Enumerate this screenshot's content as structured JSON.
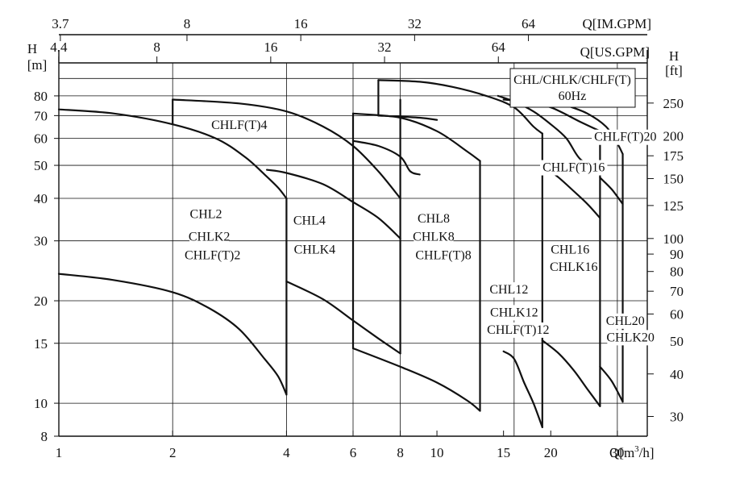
{
  "chart_data": {
    "type": "line",
    "title": "",
    "legend_box": {
      "line1": "CHL/CHLK/CHLF(T)",
      "line2": "60Hz"
    },
    "x_axis": {
      "label": "Q[m³/h]",
      "label_main": "Q[m",
      "label_sup": "3",
      "label_end": "/h]",
      "scale": "log",
      "range": [
        1,
        36
      ],
      "ticks": [
        {
          "v": 1,
          "t": "1"
        },
        {
          "v": 2,
          "t": "2"
        },
        {
          "v": 4,
          "t": "4"
        },
        {
          "v": 6,
          "t": "6"
        },
        {
          "v": 8,
          "t": "8"
        },
        {
          "v": 10,
          "t": "10"
        },
        {
          "v": 15,
          "t": "15"
        },
        {
          "v": 20,
          "t": "20"
        },
        {
          "v": 30,
          "t": "30"
        }
      ]
    },
    "x_axis_top_us": {
      "label": "Q[US.GPM]",
      "ticks": [
        {
          "v": 4.4,
          "t": "4.4"
        },
        {
          "v": 8,
          "t": "8"
        },
        {
          "v": 16,
          "t": "16"
        },
        {
          "v": 32,
          "t": "32"
        },
        {
          "v": 64,
          "t": "64"
        }
      ]
    },
    "x_axis_top_im": {
      "label": "Q[IM.GPM]",
      "ticks": [
        {
          "v": 3.7,
          "t": "3.7"
        },
        {
          "v": 8,
          "t": "8"
        },
        {
          "v": 16,
          "t": "16"
        },
        {
          "v": 32,
          "t": "32"
        },
        {
          "v": 64,
          "t": "64"
        }
      ]
    },
    "y_axis_left": {
      "label": "H",
      "unit": "[m]",
      "scale": "log",
      "range": [
        8,
        100
      ],
      "ticks": [
        {
          "v": 8,
          "t": "8"
        },
        {
          "v": 10,
          "t": "10"
        },
        {
          "v": 15,
          "t": "15"
        },
        {
          "v": 20,
          "t": "20"
        },
        {
          "v": 30,
          "t": "30"
        },
        {
          "v": 40,
          "t": "40"
        },
        {
          "v": 50,
          "t": "50"
        },
        {
          "v": 60,
          "t": "60"
        },
        {
          "v": 70,
          "t": "70"
        },
        {
          "v": 80,
          "t": "80"
        }
      ]
    },
    "y_axis_right": {
      "label": "H",
      "unit": "[ft]",
      "ticks": [
        {
          "v": 30,
          "t": "30"
        },
        {
          "v": 40,
          "t": "40"
        },
        {
          "v": 50,
          "t": "50"
        },
        {
          "v": 60,
          "t": "60"
        },
        {
          "v": 70,
          "t": "70"
        },
        {
          "v": 80,
          "t": "80"
        },
        {
          "v": 90,
          "t": "90"
        },
        {
          "v": 100,
          "t": "100"
        },
        {
          "v": 125,
          "t": "125"
        },
        {
          "v": 150,
          "t": "150"
        },
        {
          "v": 175,
          "t": "175"
        },
        {
          "v": 200,
          "t": "200"
        },
        {
          "v": 250,
          "t": "250"
        }
      ]
    },
    "grid_h_m": [
      10,
      15,
      20,
      30,
      40,
      50,
      60,
      70,
      80,
      90
    ],
    "grid_v_q": [
      2,
      4,
      6,
      8,
      16,
      30
    ],
    "series": [
      {
        "points": [
          [
            1,
            73
          ],
          [
            1.4,
            71
          ],
          [
            2,
            66
          ],
          [
            2.6,
            60
          ],
          [
            3.1,
            53
          ],
          [
            3.5,
            47
          ],
          [
            3.8,
            43
          ],
          [
            4,
            40
          ]
        ]
      },
      {
        "points": [
          [
            1,
            24
          ],
          [
            1.4,
            23
          ],
          [
            2,
            21.2
          ],
          [
            2.5,
            19
          ],
          [
            3,
            16.5
          ],
          [
            3.5,
            13.5
          ],
          [
            3.8,
            12
          ],
          [
            4,
            10.6
          ]
        ]
      },
      {
        "points": [
          [
            2,
            78
          ],
          [
            3,
            76
          ],
          [
            4,
            72
          ],
          [
            5,
            65
          ],
          [
            6,
            57
          ],
          [
            7,
            48
          ],
          [
            8,
            40
          ]
        ]
      },
      {
        "points": [
          [
            3.55,
            48.5
          ],
          [
            4,
            47.5
          ],
          [
            5,
            44
          ],
          [
            6,
            39
          ],
          [
            7,
            35
          ],
          [
            8,
            30.5
          ]
        ]
      },
      {
        "points": [
          [
            4,
            22.8
          ],
          [
            5,
            20.2
          ],
          [
            6,
            17.5
          ],
          [
            7,
            15.5
          ],
          [
            8,
            14
          ]
        ]
      },
      {
        "points": [
          [
            6,
            71
          ],
          [
            8,
            69
          ],
          [
            10,
            63
          ],
          [
            12,
            55
          ],
          [
            13,
            51.5
          ]
        ]
      },
      {
        "points": [
          [
            6,
            59
          ],
          [
            7,
            57
          ],
          [
            8,
            53
          ],
          [
            8.5,
            48
          ],
          [
            9,
            47
          ]
        ]
      },
      {
        "points": [
          [
            6,
            14.5
          ],
          [
            8,
            12.8
          ],
          [
            10,
            11.5
          ],
          [
            12,
            10.2
          ],
          [
            13,
            9.5
          ]
        ]
      },
      {
        "points": [
          [
            7,
            89
          ],
          [
            9,
            88
          ],
          [
            11,
            85
          ],
          [
            13.5,
            80
          ],
          [
            16,
            74
          ],
          [
            18,
            65
          ],
          [
            19,
            62
          ]
        ]
      },
      {
        "points": [
          [
            7,
            70
          ],
          [
            9,
            69
          ],
          [
            10,
            68
          ]
        ]
      },
      {
        "points": [
          [
            15,
            14.2
          ],
          [
            16,
            13.5
          ],
          [
            17,
            11.5
          ],
          [
            18,
            10
          ],
          [
            19,
            8.5
          ]
        ]
      },
      {
        "points": [
          [
            15,
            78
          ],
          [
            17,
            77
          ],
          [
            20,
            74
          ],
          [
            24,
            67
          ],
          [
            27,
            63
          ]
        ]
      },
      {
        "points": [
          [
            14.5,
            80
          ],
          [
            16,
            77
          ],
          [
            18,
            72
          ],
          [
            20,
            66
          ],
          [
            22,
            60
          ],
          [
            24,
            52
          ],
          [
            27,
            49
          ]
        ]
      },
      {
        "points": [
          [
            19,
            50
          ],
          [
            21,
            46
          ],
          [
            23,
            42
          ],
          [
            25,
            38.5
          ],
          [
            27,
            35
          ]
        ]
      },
      {
        "points": [
          [
            19,
            15.3
          ],
          [
            21,
            14
          ],
          [
            23,
            12.5
          ],
          [
            25,
            11
          ],
          [
            27,
            9.8
          ]
        ]
      },
      {
        "points": [
          [
            22,
            75
          ],
          [
            25,
            71
          ],
          [
            28,
            65
          ],
          [
            30,
            58
          ],
          [
            31,
            54
          ]
        ]
      },
      {
        "points": [
          [
            27,
            46
          ],
          [
            29,
            42.5
          ],
          [
            31,
            38.5
          ]
        ]
      },
      {
        "points": [
          [
            27,
            12.8
          ],
          [
            29,
            11.6
          ],
          [
            31,
            10.1
          ]
        ]
      }
    ],
    "vertical_drops": [
      [
        4,
        10.6,
        40
      ],
      [
        8,
        14,
        78
      ],
      [
        6,
        14.5,
        71
      ],
      [
        13,
        9.5,
        51.5
      ],
      [
        19,
        8.5,
        62
      ],
      [
        27,
        9.8,
        63
      ],
      [
        31,
        10.1,
        54
      ],
      [
        2,
        66,
        78
      ],
      [
        7,
        70,
        89
      ]
    ],
    "labels": [
      {
        "q": 3.0,
        "h": 64,
        "t": "CHLF(T)4"
      },
      {
        "q": 2.45,
        "h": 35,
        "t": "CHL2"
      },
      {
        "q": 2.5,
        "h": 30,
        "t": "CHLK2"
      },
      {
        "q": 2.55,
        "h": 26.5,
        "t": "CHLF(T)2"
      },
      {
        "q": 4.6,
        "h": 33.5,
        "t": "CHL4"
      },
      {
        "q": 4.75,
        "h": 27.5,
        "t": "CHLK4"
      },
      {
        "q": 9.8,
        "h": 34,
        "t": "CHL8"
      },
      {
        "q": 9.8,
        "h": 30,
        "t": "CHLK8"
      },
      {
        "q": 10.4,
        "h": 26.5,
        "t": "CHLF(T)8"
      },
      {
        "q": 15.5,
        "h": 21,
        "t": "CHL12"
      },
      {
        "q": 16,
        "h": 18,
        "t": "CHLK12"
      },
      {
        "q": 16.4,
        "h": 16,
        "t": "CHLF(T)12"
      },
      {
        "q": 23,
        "h": 48,
        "t": "CHLF(T)16"
      },
      {
        "q": 22.5,
        "h": 27.5,
        "t": "CHL16"
      },
      {
        "q": 23,
        "h": 24.5,
        "t": "CHLK16"
      },
      {
        "q": 31.5,
        "h": 59,
        "t": "CHLF(T)20"
      },
      {
        "q": 31.5,
        "h": 17,
        "t": "CHL20"
      },
      {
        "q": 32.5,
        "h": 15.2,
        "t": "CHLK20"
      }
    ]
  }
}
